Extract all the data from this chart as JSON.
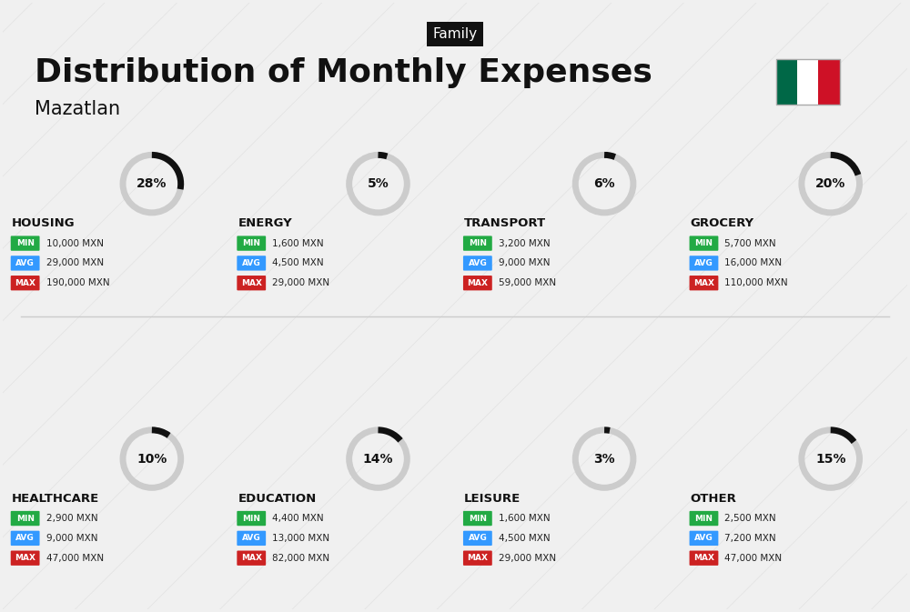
{
  "title": "Distribution of Monthly Expenses",
  "subtitle": "Mazatlan",
  "family_label": "Family",
  "bg_color": "#f0f0f0",
  "categories": [
    {
      "name": "HOUSING",
      "percent": 28,
      "min_val": "10,000 MXN",
      "avg_val": "29,000 MXN",
      "max_val": "190,000 MXN",
      "row": 0,
      "col": 0
    },
    {
      "name": "ENERGY",
      "percent": 5,
      "min_val": "1,600 MXN",
      "avg_val": "4,500 MXN",
      "max_val": "29,000 MXN",
      "row": 0,
      "col": 1
    },
    {
      "name": "TRANSPORT",
      "percent": 6,
      "min_val": "3,200 MXN",
      "avg_val": "9,000 MXN",
      "max_val": "59,000 MXN",
      "row": 0,
      "col": 2
    },
    {
      "name": "GROCERY",
      "percent": 20,
      "min_val": "5,700 MXN",
      "avg_val": "16,000 MXN",
      "max_val": "110,000 MXN",
      "row": 0,
      "col": 3
    },
    {
      "name": "HEALTHCARE",
      "percent": 10,
      "min_val": "2,900 MXN",
      "avg_val": "9,000 MXN",
      "max_val": "47,000 MXN",
      "row": 1,
      "col": 0
    },
    {
      "name": "EDUCATION",
      "percent": 14,
      "min_val": "4,400 MXN",
      "avg_val": "13,000 MXN",
      "max_val": "82,000 MXN",
      "row": 1,
      "col": 1
    },
    {
      "name": "LEISURE",
      "percent": 3,
      "min_val": "1,600 MXN",
      "avg_val": "4,500 MXN",
      "max_val": "29,000 MXN",
      "row": 1,
      "col": 2
    },
    {
      "name": "OTHER",
      "percent": 15,
      "min_val": "2,500 MXN",
      "avg_val": "7,200 MXN",
      "max_val": "47,000 MXN",
      "row": 1,
      "col": 3
    }
  ],
  "min_color": "#22aa44",
  "avg_color": "#3399ff",
  "max_color": "#cc2222",
  "label_color": "#ffffff",
  "arc_color_filled": "#111111",
  "arc_color_empty": "#cccccc",
  "category_name_color": "#111111",
  "value_text_color": "#222222"
}
